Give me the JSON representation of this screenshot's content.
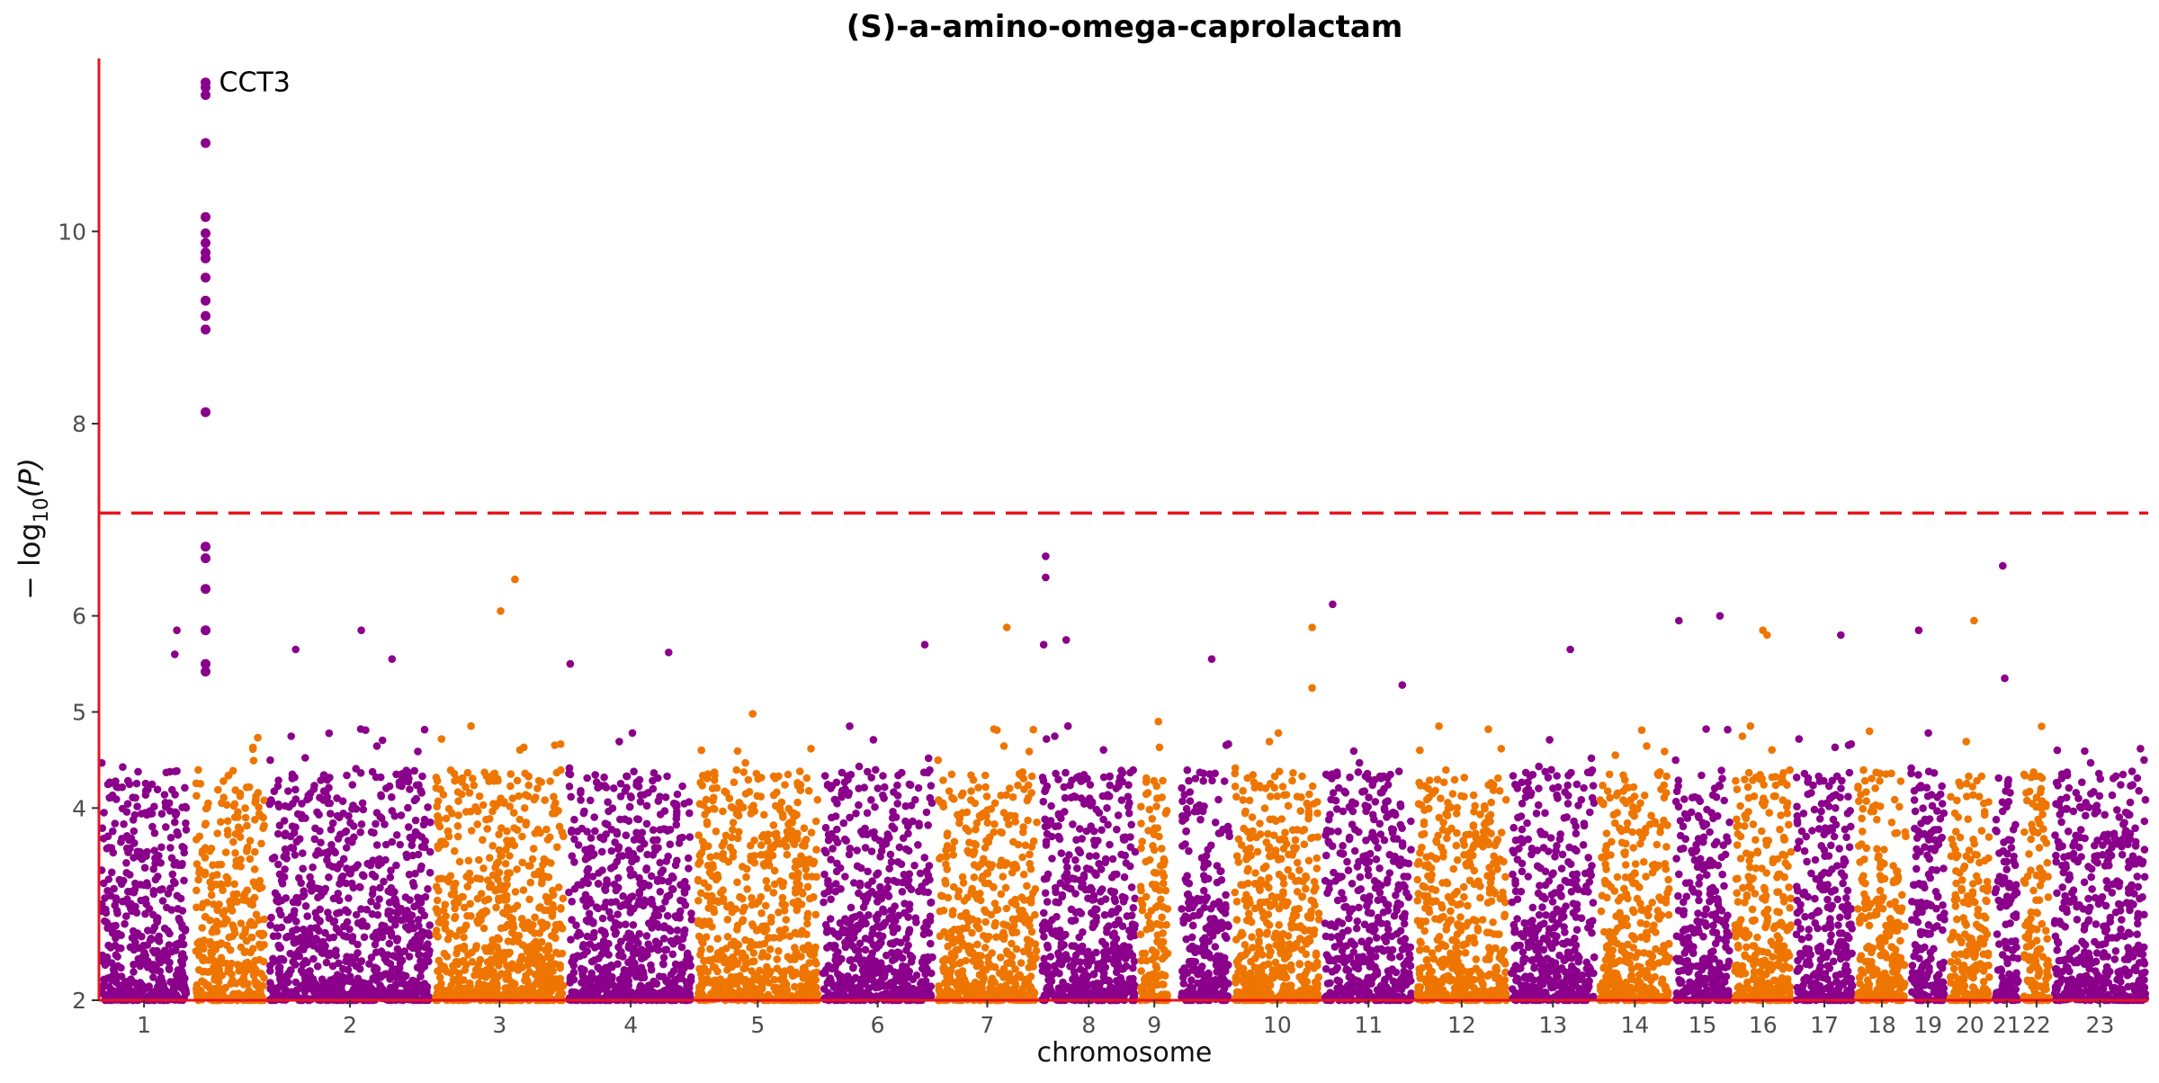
{
  "chart_data": {
    "type": "scatter",
    "title": "(S)-a-amino-omega-caprolactam",
    "xlabel": "chromosome",
    "ylabel_main": "− log",
    "ylabel_sub": "10",
    "ylabel_tail": "(P)",
    "ylim": [
      2,
      11.8
    ],
    "yticks": [
      2,
      4,
      5,
      6,
      8,
      10
    ],
    "significance_threshold": 7.07,
    "grid": false,
    "legend": "none",
    "colors": {
      "odd": "#8B008B",
      "even": "#EE7600",
      "threshold": "#E8141E",
      "axis": "#E8141E"
    },
    "chromosomes": [
      {
        "label": "1",
        "start": 0.0,
        "end": 0.044,
        "hits": [
          [
            0.038,
            5.85
          ],
          [
            0.037,
            5.6
          ]
        ]
      },
      {
        "label": "",
        "start": 0.046,
        "end": 0.082,
        "hits": []
      },
      {
        "label": "2",
        "start": 0.082,
        "end": 0.163,
        "hits": [
          [
            0.128,
            5.85
          ],
          [
            0.143,
            5.55
          ],
          [
            0.096,
            5.65
          ]
        ]
      },
      {
        "label": "3",
        "start": 0.163,
        "end": 0.228,
        "hits": [
          [
            0.196,
            6.05
          ],
          [
            0.203,
            6.38
          ]
        ]
      },
      {
        "label": "4",
        "start": 0.228,
        "end": 0.291,
        "hits": [
          [
            0.278,
            5.62
          ],
          [
            0.23,
            5.5
          ]
        ]
      },
      {
        "label": "5",
        "start": 0.291,
        "end": 0.352,
        "hits": [
          [
            0.319,
            4.98
          ]
        ]
      },
      {
        "label": "6",
        "start": 0.352,
        "end": 0.408,
        "hits": [
          [
            0.403,
            5.7
          ]
        ]
      },
      {
        "label": "7",
        "start": 0.408,
        "end": 0.459,
        "hits": [
          [
            0.443,
            5.88
          ]
        ]
      },
      {
        "label": "8",
        "start": 0.459,
        "end": 0.507,
        "hits": [
          [
            0.462,
            6.62
          ],
          [
            0.462,
            6.4
          ],
          [
            0.472,
            5.75
          ],
          [
            0.461,
            5.7
          ]
        ]
      },
      {
        "label": "9",
        "start": 0.507,
        "end": 0.523,
        "hits": [
          [
            0.517,
            4.9
          ]
        ]
      },
      {
        "label": "",
        "start": 0.527,
        "end": 0.553,
        "hits": [
          [
            0.543,
            5.55
          ]
        ]
      },
      {
        "label": "10",
        "start": 0.553,
        "end": 0.597,
        "hits": [
          [
            0.592,
            5.25
          ],
          [
            0.592,
            5.88
          ]
        ]
      },
      {
        "label": "11",
        "start": 0.597,
        "end": 0.642,
        "hits": [
          [
            0.602,
            6.12
          ],
          [
            0.636,
            5.28
          ]
        ]
      },
      {
        "label": "12",
        "start": 0.642,
        "end": 0.688,
        "hits": [
          [
            0.678,
            4.82
          ]
        ]
      },
      {
        "label": "13",
        "start": 0.688,
        "end": 0.731,
        "hits": [
          [
            0.718,
            5.65
          ]
        ]
      },
      {
        "label": "14",
        "start": 0.731,
        "end": 0.768,
        "hits": [
          [
            0.74,
            4.55
          ]
        ]
      },
      {
        "label": "15",
        "start": 0.768,
        "end": 0.797,
        "hits": [
          [
            0.771,
            5.95
          ],
          [
            0.791,
            6.0
          ]
        ]
      },
      {
        "label": "16",
        "start": 0.797,
        "end": 0.827,
        "hits": [
          [
            0.812,
            5.85
          ],
          [
            0.814,
            5.8
          ]
        ]
      },
      {
        "label": "17",
        "start": 0.827,
        "end": 0.857,
        "hits": [
          [
            0.85,
            5.8
          ]
        ]
      },
      {
        "label": "18",
        "start": 0.857,
        "end": 0.883,
        "hits": [
          [
            0.864,
            4.8
          ]
        ]
      },
      {
        "label": "19",
        "start": 0.883,
        "end": 0.902,
        "hits": [
          [
            0.888,
            5.85
          ]
        ]
      },
      {
        "label": "20",
        "start": 0.902,
        "end": 0.924,
        "hits": [
          [
            0.915,
            5.95
          ]
        ]
      },
      {
        "label": "21",
        "start": 0.924,
        "end": 0.938,
        "hits": [
          [
            0.929,
            6.52
          ],
          [
            0.93,
            5.35
          ]
        ]
      },
      {
        "label": "22",
        "start": 0.938,
        "end": 0.953,
        "hits": [
          [
            0.948,
            4.85
          ]
        ]
      },
      {
        "label": "23",
        "start": 0.953,
        "end": 1.0,
        "hits": [
          [
            0.998,
            4.5
          ]
        ]
      }
    ],
    "peak": {
      "gene": "CCT3",
      "x": 0.052,
      "values": [
        11.55,
        11.5,
        11.42,
        10.92,
        10.15,
        9.98,
        9.88,
        9.78,
        9.72,
        9.52,
        9.28,
        9.12,
        8.98,
        8.12,
        6.72,
        6.6,
        6.28,
        5.85,
        5.5,
        5.42
      ]
    }
  }
}
